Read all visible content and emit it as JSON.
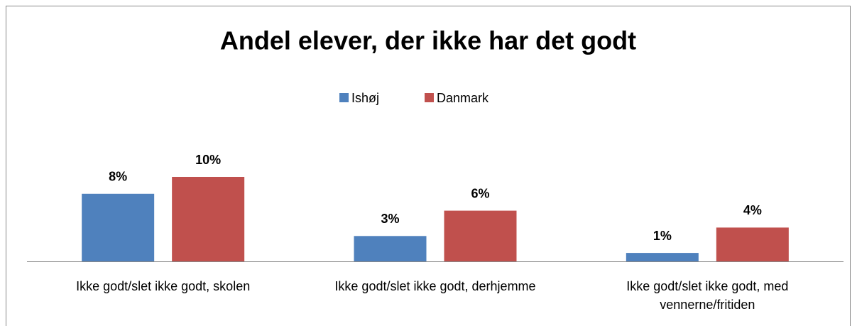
{
  "chart_data": {
    "type": "bar",
    "title": "Andel elever, der ikke har det godt",
    "categories": [
      "Ikke godt/slet ikke godt, skolen",
      "Ikke godt/slet ikke godt, derhjemme",
      "Ikke godt/slet ikke godt, med vennerne/fritiden"
    ],
    "series": [
      {
        "name": "Ishøj",
        "color": "#4f81bd",
        "values": [
          8,
          3,
          1
        ],
        "value_labels": [
          "8%",
          "3%",
          "1%"
        ]
      },
      {
        "name": "Danmark",
        "color": "#c0504d",
        "values": [
          10,
          6,
          4
        ],
        "value_labels": [
          "10%",
          "6%",
          "4%"
        ]
      }
    ],
    "legend": "top"
  }
}
